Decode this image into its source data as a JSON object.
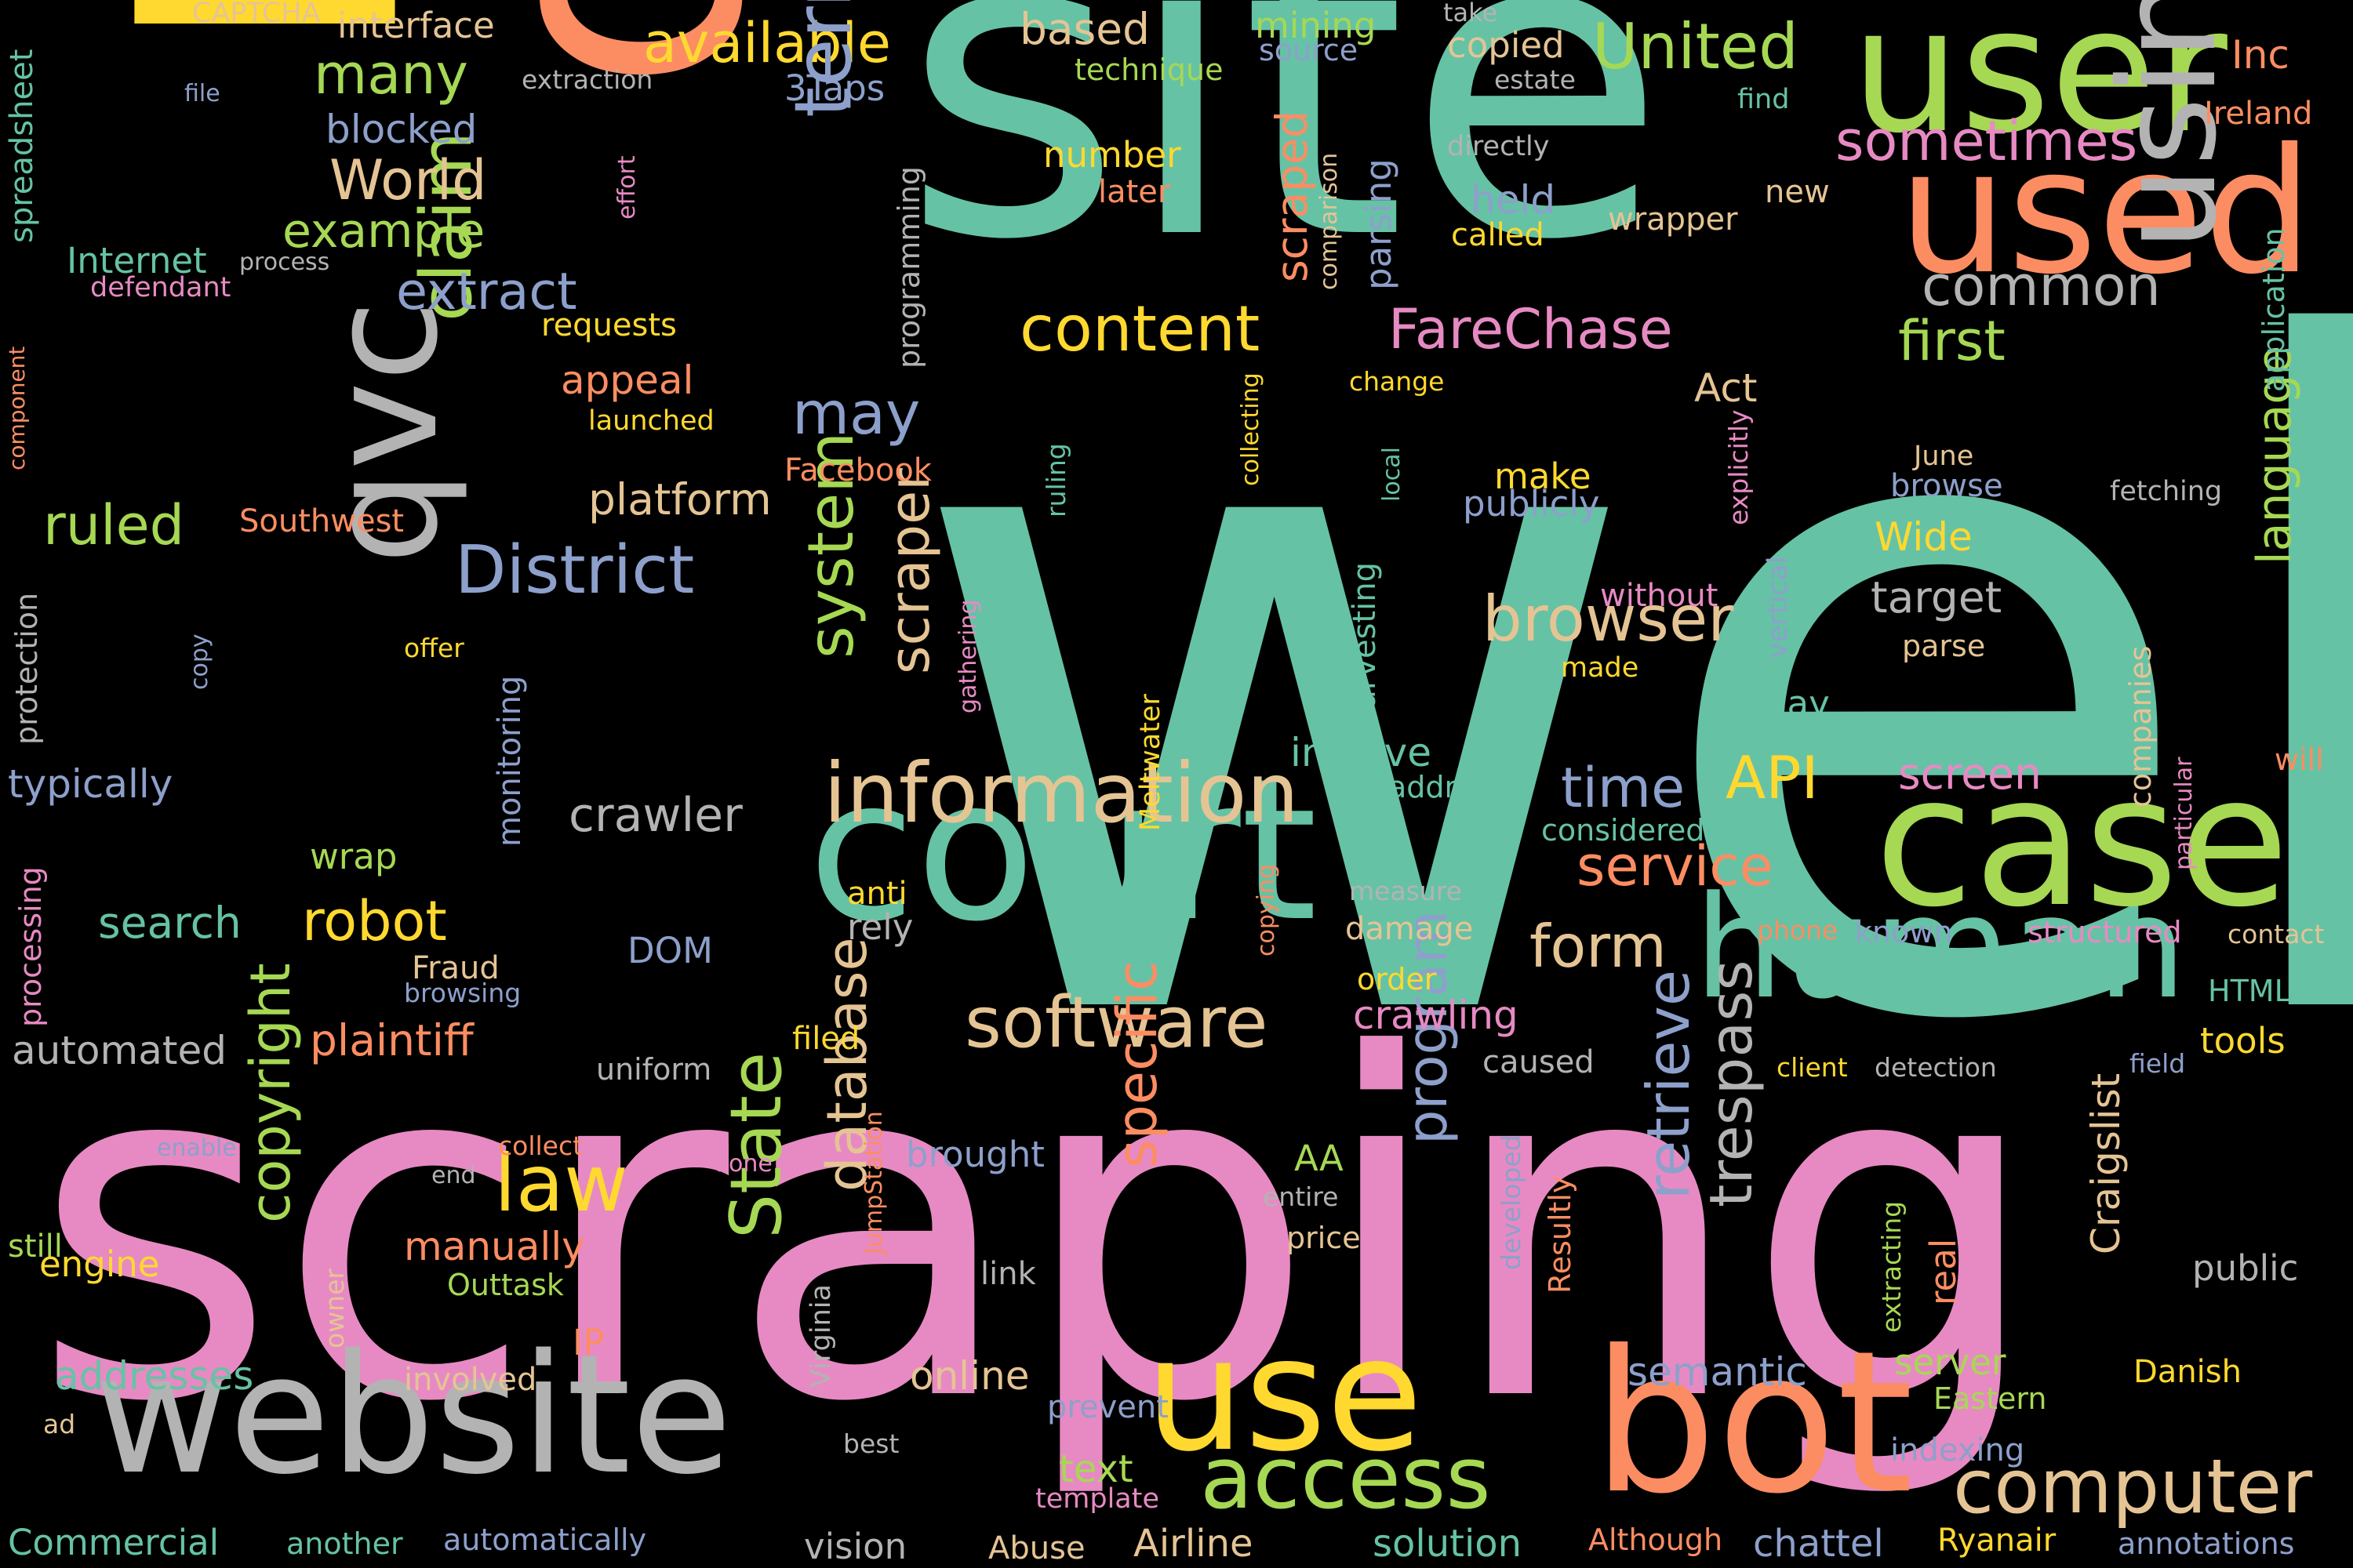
{
  "palette": {
    "background": "#000000",
    "teal": "#66c2a5",
    "orange": "#fc8d62",
    "blue": "#8da0cb",
    "pink": "#e78ac3",
    "green": "#a6d854",
    "yellow": "#ffd92f",
    "tan": "#e5c494",
    "gray": "#b3b3b3"
  },
  "words": [
    {
      "text": "web",
      "color": "teal"
    },
    {
      "text": "scraping",
      "color": "pink"
    },
    {
      "text": "site",
      "color": "teal"
    },
    {
      "text": "data",
      "color": "orange"
    },
    {
      "text": "page",
      "color": "yellow"
    },
    {
      "text": "user",
      "color": "green"
    },
    {
      "text": "used",
      "color": "orange"
    },
    {
      "text": "court",
      "color": "teal"
    },
    {
      "text": "case",
      "color": "green"
    },
    {
      "text": "website",
      "color": "gray"
    },
    {
      "text": "bot",
      "color": "orange"
    },
    {
      "text": "use",
      "color": "yellow"
    },
    {
      "text": "human",
      "color": "teal"
    },
    {
      "text": "using",
      "color": "gray"
    },
    {
      "text": "qvc",
      "color": "gray"
    },
    {
      "text": "information",
      "color": "tan"
    },
    {
      "text": "access",
      "color": "green"
    },
    {
      "text": "computer",
      "color": "tan"
    },
    {
      "text": "software",
      "color": "tan"
    },
    {
      "text": "content",
      "color": "yellow"
    },
    {
      "text": "FareChase",
      "color": "pink"
    },
    {
      "text": "United",
      "color": "green"
    },
    {
      "text": "available",
      "color": "yellow"
    },
    {
      "text": "term",
      "color": "blue"
    },
    {
      "text": "District",
      "color": "blue"
    },
    {
      "text": "claim",
      "color": "green"
    },
    {
      "text": "system",
      "color": "green"
    },
    {
      "text": "scraper",
      "color": "tan"
    },
    {
      "text": "law",
      "color": "yellow"
    },
    {
      "text": "copyright",
      "color": "green"
    },
    {
      "text": "State",
      "color": "green"
    },
    {
      "text": "database",
      "color": "tan"
    },
    {
      "text": "specific",
      "color": "orange"
    },
    {
      "text": "program",
      "color": "blue"
    },
    {
      "text": "retrieve",
      "color": "blue"
    },
    {
      "text": "trespass",
      "color": "gray"
    },
    {
      "text": "browser",
      "color": "tan"
    },
    {
      "text": "crawler",
      "color": "gray"
    },
    {
      "text": "language",
      "color": "green"
    },
    {
      "text": "common",
      "color": "gray"
    },
    {
      "text": "first",
      "color": "green"
    },
    {
      "text": "extract",
      "color": "blue"
    },
    {
      "text": "many",
      "color": "green"
    },
    {
      "text": "World",
      "color": "tan"
    },
    {
      "text": "example",
      "color": "green"
    },
    {
      "text": "sometimes",
      "color": "pink"
    },
    {
      "text": "ruled",
      "color": "green"
    },
    {
      "text": "may",
      "color": "blue"
    },
    {
      "text": "platform",
      "color": "tan"
    },
    {
      "text": "robot",
      "color": "yellow"
    },
    {
      "text": "search",
      "color": "teal"
    },
    {
      "text": "API",
      "color": "yellow"
    },
    {
      "text": "time",
      "color": "blue"
    },
    {
      "text": "service",
      "color": "orange"
    },
    {
      "text": "form",
      "color": "tan"
    },
    {
      "text": "based",
      "color": "tan"
    },
    {
      "text": "mining",
      "color": "green"
    },
    {
      "text": "Inc",
      "color": "orange"
    },
    {
      "text": "Ireland",
      "color": "orange"
    },
    {
      "text": "interface",
      "color": "tan"
    },
    {
      "text": "CAPTCHA",
      "color": "tan"
    },
    {
      "text": "spreadsheet",
      "color": "teal"
    },
    {
      "text": "file",
      "color": "blue"
    },
    {
      "text": "blocked",
      "color": "blue"
    },
    {
      "text": "extraction",
      "color": "gray"
    },
    {
      "text": "3Taps",
      "color": "blue"
    },
    {
      "text": "take",
      "color": "gray"
    },
    {
      "text": "copied",
      "color": "tan"
    },
    {
      "text": "technique",
      "color": "green"
    },
    {
      "text": "estate",
      "color": "gray"
    },
    {
      "text": "source",
      "color": "blue"
    },
    {
      "text": "find",
      "color": "teal"
    },
    {
      "text": "number",
      "color": "yellow"
    },
    {
      "text": "later",
      "color": "orange"
    },
    {
      "text": "held",
      "color": "blue"
    },
    {
      "text": "directly",
      "color": "gray"
    },
    {
      "text": "new",
      "color": "tan"
    },
    {
      "text": "called",
      "color": "yellow"
    },
    {
      "text": "wrapper",
      "color": "tan"
    },
    {
      "text": "Internet",
      "color": "teal"
    },
    {
      "text": "defendant",
      "color": "pink"
    },
    {
      "text": "process",
      "color": "gray"
    },
    {
      "text": "effort",
      "color": "pink"
    },
    {
      "text": "requests",
      "color": "yellow"
    },
    {
      "text": "programming",
      "color": "gray"
    },
    {
      "text": "scraped",
      "color": "orange"
    },
    {
      "text": "comparison",
      "color": "tan"
    },
    {
      "text": "parsing",
      "color": "blue"
    },
    {
      "text": "application",
      "color": "teal"
    },
    {
      "text": "component",
      "color": "orange"
    },
    {
      "text": "appeal",
      "color": "orange"
    },
    {
      "text": "launched",
      "color": "yellow"
    },
    {
      "text": "Act",
      "color": "tan"
    },
    {
      "text": "change",
      "color": "yellow"
    },
    {
      "text": "collecting",
      "color": "yellow"
    },
    {
      "text": "explicitly",
      "color": "pink"
    },
    {
      "text": "Facebook",
      "color": "orange"
    },
    {
      "text": "Southwest",
      "color": "orange"
    },
    {
      "text": "ruling",
      "color": "teal"
    },
    {
      "text": "June",
      "color": "tan"
    },
    {
      "text": "browse",
      "color": "blue"
    },
    {
      "text": "local",
      "color": "teal"
    },
    {
      "text": "fetching",
      "color": "gray"
    },
    {
      "text": "make",
      "color": "yellow"
    },
    {
      "text": "publicly",
      "color": "blue"
    },
    {
      "text": "Wide",
      "color": "yellow"
    },
    {
      "text": "protection",
      "color": "gray"
    },
    {
      "text": "copy",
      "color": "blue"
    },
    {
      "text": "offer",
      "color": "yellow"
    },
    {
      "text": "monitoring",
      "color": "blue"
    },
    {
      "text": "gathering",
      "color": "pink"
    },
    {
      "text": "harvesting",
      "color": "teal"
    },
    {
      "text": "without",
      "color": "pink"
    },
    {
      "text": "vertical",
      "color": "blue"
    },
    {
      "text": "target",
      "color": "gray"
    },
    {
      "text": "made",
      "color": "yellow"
    },
    {
      "text": "parse",
      "color": "tan"
    },
    {
      "text": "typically",
      "color": "blue"
    },
    {
      "text": "processing",
      "color": "pink"
    },
    {
      "text": "wrap",
      "color": "green"
    },
    {
      "text": "involve",
      "color": "teal"
    },
    {
      "text": "address",
      "color": "teal"
    },
    {
      "text": "Meltwater",
      "color": "yellow"
    },
    {
      "text": "screen",
      "color": "pink"
    },
    {
      "text": "companies",
      "color": "tan"
    },
    {
      "text": "particular",
      "color": "pink"
    },
    {
      "text": "will",
      "color": "orange"
    },
    {
      "text": "considered",
      "color": "teal"
    },
    {
      "text": "anti",
      "color": "yellow"
    },
    {
      "text": "rely",
      "color": "gray"
    },
    {
      "text": "DOM",
      "color": "blue"
    },
    {
      "text": "measure",
      "color": "gray"
    },
    {
      "text": "copying",
      "color": "orange"
    },
    {
      "text": "damage",
      "color": "tan"
    },
    {
      "text": "phone",
      "color": "orange"
    },
    {
      "text": "known",
      "color": "blue"
    },
    {
      "text": "structured",
      "color": "pink"
    },
    {
      "text": "contact",
      "color": "tan"
    },
    {
      "text": "Fraud",
      "color": "tan"
    },
    {
      "text": "browsing",
      "color": "blue"
    },
    {
      "text": "eBay",
      "color": "teal"
    },
    {
      "text": "order",
      "color": "yellow"
    },
    {
      "text": "crawling",
      "color": "pink"
    },
    {
      "text": "plaintiff",
      "color": "orange"
    },
    {
      "text": "automated",
      "color": "gray"
    },
    {
      "text": "HTML",
      "color": "teal"
    },
    {
      "text": "filed",
      "color": "yellow"
    },
    {
      "text": "caused",
      "color": "gray"
    },
    {
      "text": "tools",
      "color": "yellow"
    },
    {
      "text": "uniform",
      "color": "gray"
    },
    {
      "text": "client",
      "color": "yellow"
    },
    {
      "text": "detection",
      "color": "gray"
    },
    {
      "text": "field",
      "color": "blue"
    },
    {
      "text": "Craigslist",
      "color": "tan"
    },
    {
      "text": "enable",
      "color": "blue"
    },
    {
      "text": "collect",
      "color": "orange"
    },
    {
      "text": "brought",
      "color": "blue"
    },
    {
      "text": "end",
      "color": "gray"
    },
    {
      "text": "done",
      "color": "pink"
    },
    {
      "text": "AA",
      "color": "green"
    },
    {
      "text": "developed",
      "color": "blue"
    },
    {
      "text": "JumpStation",
      "color": "orange"
    },
    {
      "text": "entire",
      "color": "gray"
    },
    {
      "text": "Resultly",
      "color": "orange"
    },
    {
      "text": "manually",
      "color": "orange"
    },
    {
      "text": "extracting",
      "color": "green"
    },
    {
      "text": "still",
      "color": "green"
    },
    {
      "text": "Virginia",
      "color": "gray"
    },
    {
      "text": "price",
      "color": "tan"
    },
    {
      "text": "engine",
      "color": "yellow"
    },
    {
      "text": "Outtask",
      "color": "green"
    },
    {
      "text": "link",
      "color": "gray"
    },
    {
      "text": "real",
      "color": "orange"
    },
    {
      "text": "public",
      "color": "gray"
    },
    {
      "text": "owner",
      "color": "tan"
    },
    {
      "text": "IP",
      "color": "orange"
    },
    {
      "text": "addresses",
      "color": "teal"
    },
    {
      "text": "involved",
      "color": "tan"
    },
    {
      "text": "semantic",
      "color": "blue"
    },
    {
      "text": "server",
      "color": "green"
    },
    {
      "text": "Danish",
      "color": "yellow"
    },
    {
      "text": "online",
      "color": "tan"
    },
    {
      "text": "ad",
      "color": "tan"
    },
    {
      "text": "prevent",
      "color": "blue"
    },
    {
      "text": "Eastern",
      "color": "green"
    },
    {
      "text": "best",
      "color": "gray"
    },
    {
      "text": "text",
      "color": "green"
    },
    {
      "text": "indexing",
      "color": "blue"
    },
    {
      "text": "template",
      "color": "pink"
    },
    {
      "text": "Commercial",
      "color": "teal"
    },
    {
      "text": "another",
      "color": "teal"
    },
    {
      "text": "automatically",
      "color": "blue"
    },
    {
      "text": "vision",
      "color": "gray"
    },
    {
      "text": "Abuse",
      "color": "tan"
    },
    {
      "text": "Airline",
      "color": "tan"
    },
    {
      "text": "solution",
      "color": "teal"
    },
    {
      "text": "Although",
      "color": "orange"
    },
    {
      "text": "chattel",
      "color": "blue"
    },
    {
      "text": "Ryanair",
      "color": "yellow"
    },
    {
      "text": "annotations",
      "color": "blue"
    }
  ]
}
